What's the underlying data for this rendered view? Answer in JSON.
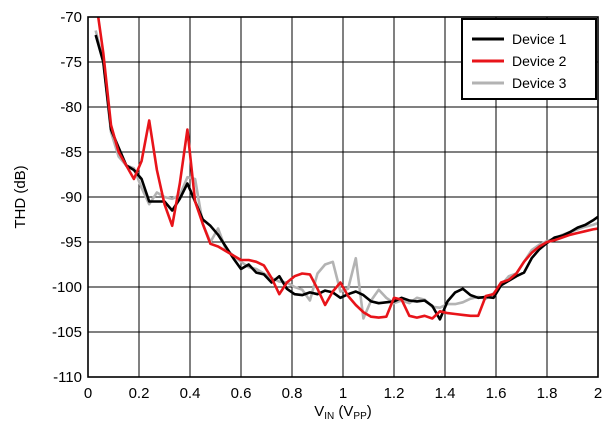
{
  "chart_data": {
    "type": "line",
    "title": "",
    "xlabel_main": "V",
    "xlabel_sub1": "IN",
    "xlabel_mid": " (V",
    "xlabel_sub2": "PP",
    "xlabel_end": ")",
    "ylabel": "THD (dB)",
    "xlim": [
      0,
      2
    ],
    "ylim": [
      -110,
      -70
    ],
    "xticks": [
      0,
      0.2,
      0.4,
      0.6,
      0.8,
      1,
      1.2,
      1.4,
      1.6,
      1.8,
      2
    ],
    "yticks": [
      -110,
      -105,
      -100,
      -95,
      -90,
      -85,
      -80,
      -75,
      -70
    ],
    "grid": true,
    "legend_position": "top-right",
    "series": [
      {
        "name": "Device 1",
        "color": "#000000",
        "x": [
          0.03,
          0.06,
          0.09,
          0.12,
          0.15,
          0.18,
          0.21,
          0.24,
          0.27,
          0.3,
          0.33,
          0.36,
          0.39,
          0.42,
          0.45,
          0.48,
          0.51,
          0.54,
          0.57,
          0.6,
          0.63,
          0.66,
          0.69,
          0.72,
          0.75,
          0.78,
          0.81,
          0.84,
          0.87,
          0.9,
          0.93,
          0.96,
          0.99,
          1.02,
          1.05,
          1.08,
          1.11,
          1.14,
          1.17,
          1.2,
          1.23,
          1.26,
          1.29,
          1.32,
          1.35,
          1.38,
          1.41,
          1.44,
          1.47,
          1.5,
          1.53,
          1.56,
          1.59,
          1.62,
          1.65,
          1.68,
          1.71,
          1.74,
          1.77,
          1.8,
          1.83,
          1.86,
          1.89,
          1.92,
          1.95,
          1.98,
          2.0
        ],
        "y": [
          -72,
          -75,
          -82.5,
          -84.5,
          -86.5,
          -87,
          -88,
          -90.5,
          -90.5,
          -90.5,
          -91.5,
          -90.2,
          -88.5,
          -90.5,
          -92.5,
          -93.2,
          -94.2,
          -95.5,
          -96.8,
          -98,
          -97.5,
          -98.4,
          -98.6,
          -99.5,
          -98.8,
          -100.2,
          -100.8,
          -100.9,
          -100.6,
          -100.8,
          -100.4,
          -100.6,
          -101.2,
          -100.8,
          -100.5,
          -100.9,
          -101.6,
          -101.8,
          -101.7,
          -101.6,
          -101.2,
          -101.5,
          -101.6,
          -101.5,
          -102.1,
          -103.6,
          -101.6,
          -100.6,
          -100.2,
          -100.9,
          -101.2,
          -101.1,
          -101.2,
          -99.8,
          -99.3,
          -98.8,
          -98.4,
          -96.8,
          -95.8,
          -95.1,
          -94.5,
          -94.3,
          -93.9,
          -93.4,
          -93.1,
          -92.6,
          -92.2
        ]
      },
      {
        "name": "Device 2",
        "color": "#e8141a",
        "x": [
          0.03,
          0.06,
          0.09,
          0.12,
          0.15,
          0.18,
          0.21,
          0.24,
          0.27,
          0.3,
          0.33,
          0.36,
          0.39,
          0.42,
          0.45,
          0.48,
          0.51,
          0.54,
          0.57,
          0.6,
          0.63,
          0.66,
          0.69,
          0.72,
          0.75,
          0.78,
          0.81,
          0.84,
          0.87,
          0.9,
          0.93,
          0.96,
          0.99,
          1.02,
          1.05,
          1.08,
          1.11,
          1.14,
          1.17,
          1.2,
          1.23,
          1.26,
          1.29,
          1.32,
          1.35,
          1.38,
          1.41,
          1.44,
          1.47,
          1.5,
          1.53,
          1.56,
          1.59,
          1.62,
          1.65,
          1.68,
          1.71,
          1.74,
          1.77,
          1.8,
          1.83,
          1.86,
          1.89,
          1.92,
          1.95,
          1.98,
          2.0
        ],
        "y": [
          -68,
          -74,
          -82,
          -85,
          -86.5,
          -88,
          -86,
          -81.5,
          -87,
          -90.8,
          -93.2,
          -88.5,
          -82.5,
          -90.5,
          -93,
          -95.2,
          -95.5,
          -96,
          -96.5,
          -97,
          -97,
          -97.2,
          -97.6,
          -99,
          -100.8,
          -99.5,
          -98.8,
          -98.5,
          -98.6,
          -100.2,
          -102,
          -100.5,
          -99.5,
          -101,
          -102,
          -102.8,
          -103.3,
          -103.4,
          -103.3,
          -101.2,
          -101.4,
          -103.2,
          -103.4,
          -103.2,
          -103.5,
          -102.7,
          -102.9,
          -103,
          -103.1,
          -103.2,
          -103.2,
          -101,
          -100.8,
          -99.5,
          -99.2,
          -98.5,
          -97.2,
          -96.2,
          -95.5,
          -95,
          -94.8,
          -94.5,
          -94.2,
          -94,
          -93.8,
          -93.6,
          -93.5
        ]
      },
      {
        "name": "Device 3",
        "color": "#b3b3b3",
        "x": [
          0.03,
          0.06,
          0.09,
          0.12,
          0.15,
          0.18,
          0.21,
          0.24,
          0.27,
          0.3,
          0.33,
          0.36,
          0.39,
          0.42,
          0.45,
          0.48,
          0.51,
          0.54,
          0.57,
          0.6,
          0.63,
          0.66,
          0.69,
          0.72,
          0.75,
          0.78,
          0.81,
          0.84,
          0.87,
          0.9,
          0.93,
          0.96,
          0.99,
          1.02,
          1.05,
          1.08,
          1.11,
          1.14,
          1.17,
          1.2,
          1.23,
          1.26,
          1.29,
          1.32,
          1.35,
          1.38,
          1.41,
          1.44,
          1.47,
          1.5,
          1.53,
          1.56,
          1.59,
          1.62,
          1.65,
          1.68,
          1.71,
          1.74,
          1.77,
          1.8,
          1.83,
          1.86,
          1.89,
          1.92,
          1.95,
          1.98,
          2.0
        ],
        "y": [
          -71.5,
          -75,
          -82.8,
          -85.5,
          -86.5,
          -86.8,
          -89,
          -90.8,
          -89.5,
          -90,
          -90.2,
          -89.8,
          -87.8,
          -88,
          -93,
          -95,
          -93.5,
          -95.8,
          -96.5,
          -97.2,
          -97.8,
          -98,
          -98.5,
          -99,
          -99.4,
          -99.5,
          -100,
          -100.3,
          -101.5,
          -98.5,
          -97.5,
          -97.2,
          -100.5,
          -100.2,
          -96.8,
          -103.5,
          -101.5,
          -100.3,
          -101.2,
          -101.8,
          -101.5,
          -101.8,
          -101.2,
          -101.4,
          -102.2,
          -102.3,
          -101.9,
          -101.9,
          -101.7,
          -101.3,
          -101.1,
          -101.3,
          -100.7,
          -99.8,
          -98.8,
          -98.5,
          -97.2,
          -95.9,
          -95.3,
          -94.9,
          -94.6,
          -94.2,
          -93.9,
          -93.6,
          -93.3,
          -93.1,
          -92.9
        ]
      }
    ]
  }
}
